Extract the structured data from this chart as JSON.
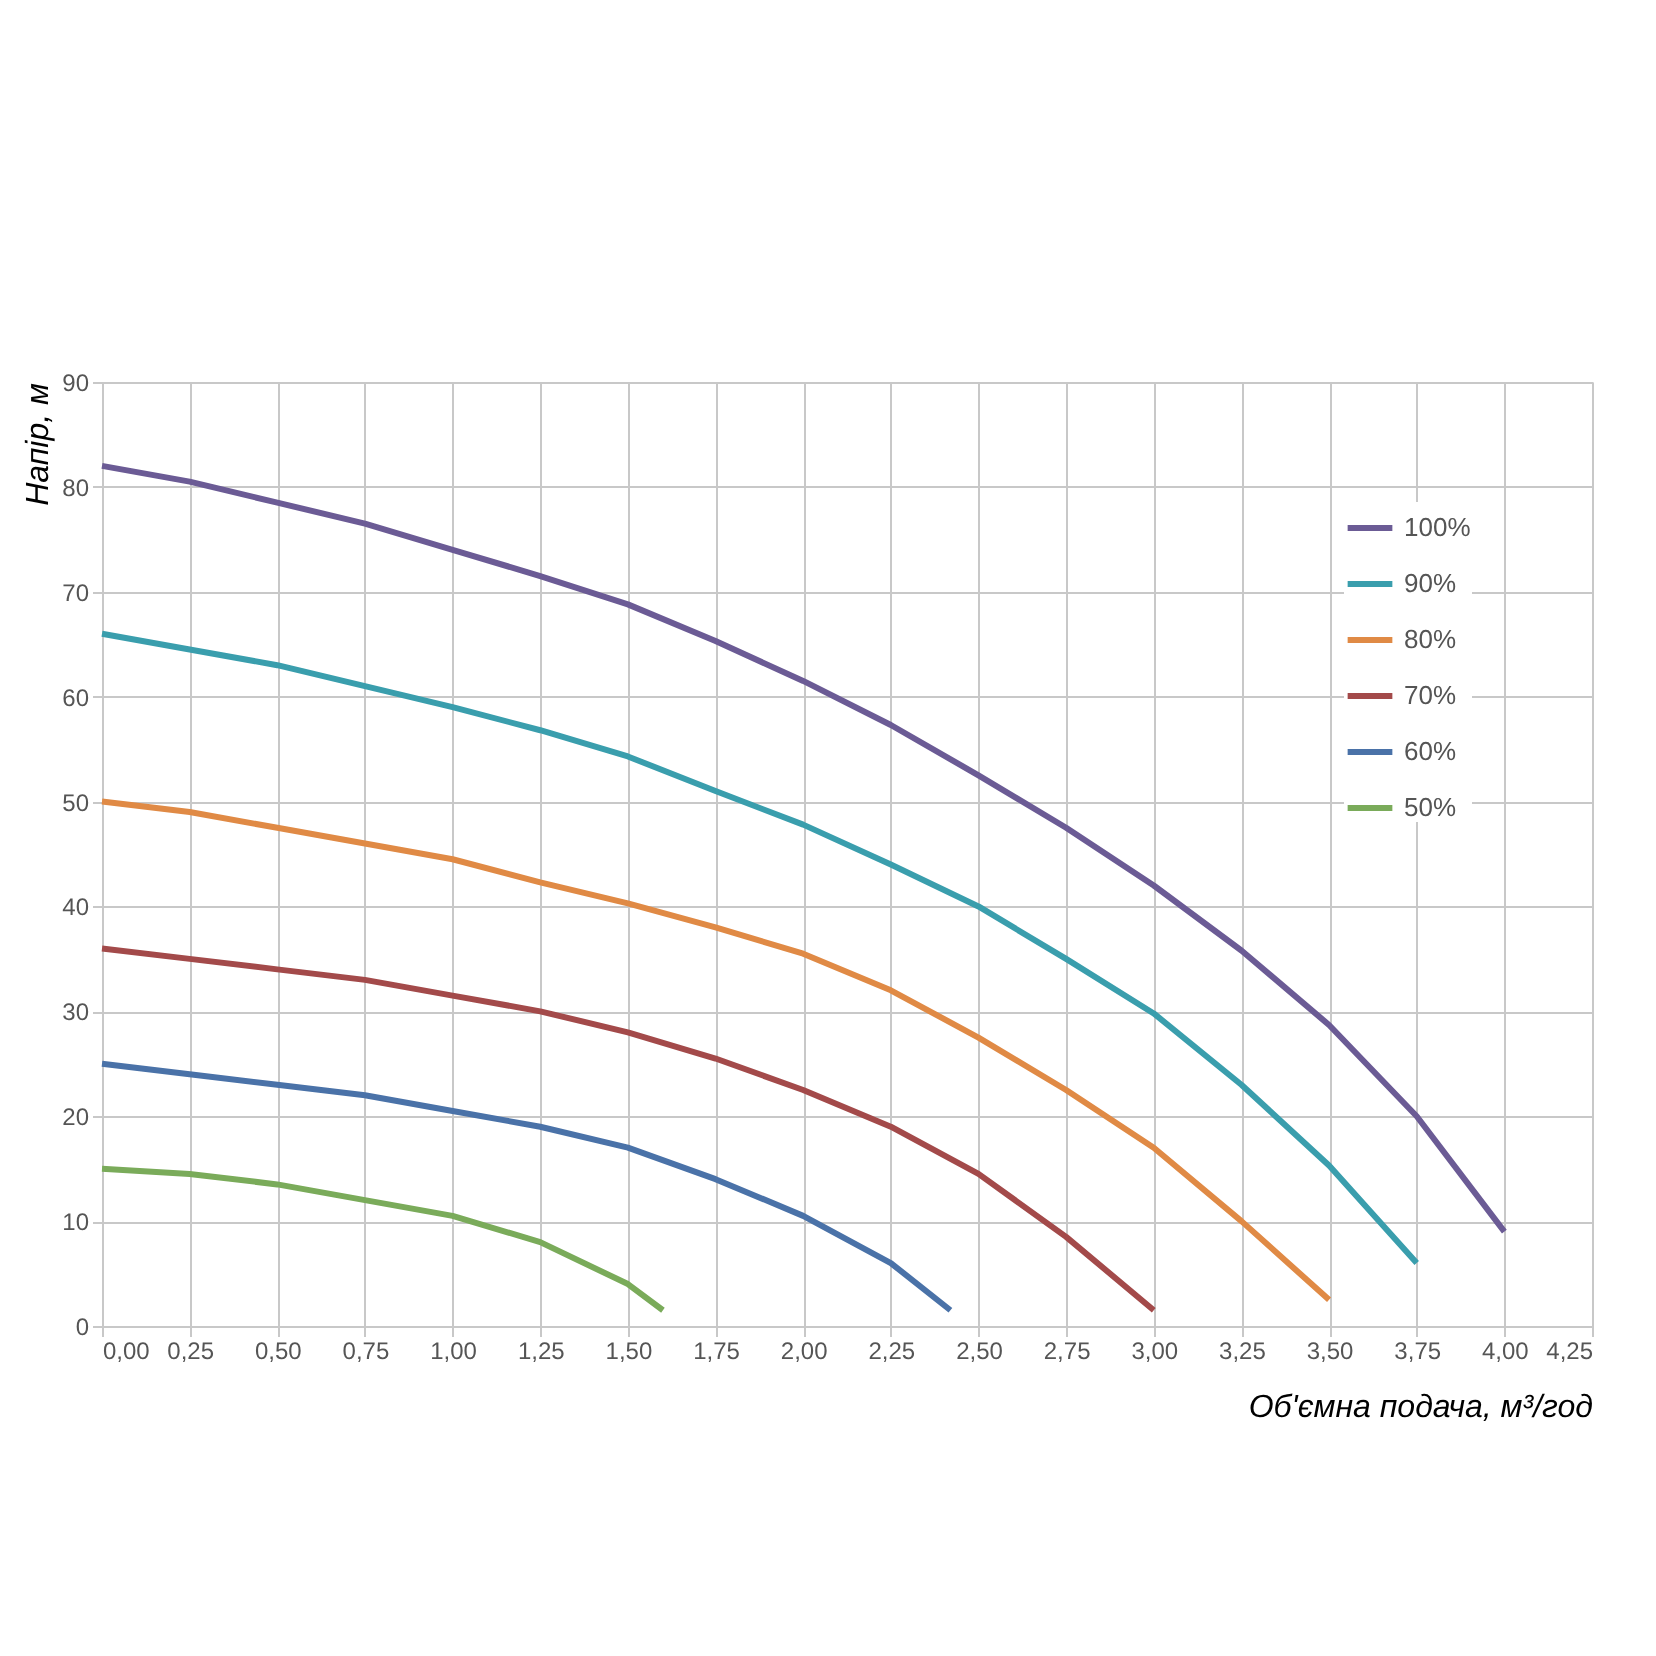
{
  "chart_data": {
    "type": "line",
    "xlabel": "Об'ємна подача, м³/год",
    "ylabel": "Напір, м",
    "xlim": [
      0,
      4.25
    ],
    "ylim": [
      0,
      90
    ],
    "xticks": [
      {
        "value": 0,
        "label": "0,00"
      },
      {
        "value": 0.25,
        "label": "0,25"
      },
      {
        "value": 0.5,
        "label": "0,50"
      },
      {
        "value": 0.75,
        "label": "0,75"
      },
      {
        "value": 1,
        "label": "1,00"
      },
      {
        "value": 1.25,
        "label": "1,25"
      },
      {
        "value": 1.5,
        "label": "1,50"
      },
      {
        "value": 1.75,
        "label": "1,75"
      },
      {
        "value": 2,
        "label": "2,00"
      },
      {
        "value": 2.25,
        "label": "2,25"
      },
      {
        "value": 2.5,
        "label": "2,50"
      },
      {
        "value": 2.75,
        "label": "2,75"
      },
      {
        "value": 3,
        "label": "3,00"
      },
      {
        "value": 3.25,
        "label": "3,25"
      },
      {
        "value": 3.5,
        "label": "3,50"
      },
      {
        "value": 3.75,
        "label": "3,75"
      },
      {
        "value": 4,
        "label": "4,00"
      },
      {
        "value": 4.25,
        "label": "4,25"
      }
    ],
    "yticks": [
      0,
      10,
      20,
      30,
      40,
      50,
      60,
      70,
      80,
      90
    ],
    "grid": true,
    "legend": "top right",
    "marker": "none",
    "line_style": "solid",
    "series": [
      {
        "name": "100%",
        "color": "#6b5b95",
        "x": [
          0,
          0.25,
          0.5,
          0.75,
          1,
          1.25,
          1.5,
          1.75,
          2,
          2.25,
          2.5,
          2.75,
          3,
          3.25,
          3.5,
          3.75,
          4
        ],
        "values": [
          82,
          80.5,
          78.5,
          76.5,
          74,
          71.5,
          68.8,
          65.3,
          61.5,
          57.3,
          52.5,
          47.5,
          42,
          35.8,
          28.7,
          20,
          9
        ]
      },
      {
        "name": "90%",
        "color": "#3a9ead",
        "x": [
          0,
          0.25,
          0.5,
          0.75,
          1,
          1.25,
          1.5,
          1.75,
          2,
          2.25,
          2.5,
          2.75,
          3,
          3.25,
          3.5,
          3.75
        ],
        "values": [
          66,
          64.5,
          63,
          61,
          59,
          56.8,
          54.3,
          51,
          47.8,
          44,
          40,
          35,
          29.8,
          23,
          15.3,
          6
        ]
      },
      {
        "name": "80%",
        "color": "#e08a45",
        "x": [
          0,
          0.25,
          0.5,
          0.75,
          1,
          1.25,
          1.5,
          1.75,
          2,
          2.25,
          2.5,
          2.75,
          3,
          3.25,
          3.5
        ],
        "values": [
          50,
          49,
          47.5,
          46,
          44.5,
          42.3,
          40.3,
          38,
          35.5,
          32,
          27.5,
          22.5,
          17,
          10,
          2.5
        ]
      },
      {
        "name": "70%",
        "color": "#a34a4a",
        "x": [
          0,
          0.25,
          0.5,
          0.75,
          1,
          1.25,
          1.5,
          1.75,
          2,
          2.25,
          2.5,
          2.75,
          3
        ],
        "values": [
          36,
          35,
          34,
          33,
          31.5,
          30,
          28,
          25.5,
          22.5,
          19,
          14.5,
          8.5,
          1.5
        ]
      },
      {
        "name": "60%",
        "color": "#4a72a8",
        "x": [
          0,
          0.25,
          0.5,
          0.75,
          1,
          1.25,
          1.5,
          1.75,
          2,
          2.25,
          2.42
        ],
        "values": [
          25,
          24,
          23,
          22,
          20.5,
          19,
          17,
          14,
          10.5,
          6,
          1.5
        ]
      },
      {
        "name": "50%",
        "color": "#7aab5a",
        "x": [
          0,
          0.25,
          0.5,
          0.75,
          1,
          1.25,
          1.5,
          1.6
        ],
        "values": [
          15,
          14.5,
          13.5,
          12,
          10.5,
          8,
          4,
          1.5
        ]
      }
    ]
  }
}
